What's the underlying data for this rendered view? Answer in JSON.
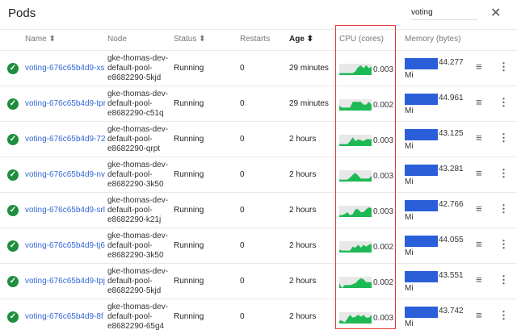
{
  "title": "Pods",
  "search": {
    "value": "voting"
  },
  "colors": {
    "link": "#3367d6",
    "cpu": "#1db954",
    "cpu_bg": "#e8e8e8",
    "memory": "#2b5fd9",
    "ok": "#1e8e3e",
    "highlight": "#e53935"
  },
  "columns": {
    "name": "Name ⬍",
    "node": "Node",
    "status": "Status ⬍",
    "restarts": "Restarts",
    "age": "Age ⬍",
    "cpu": "CPU (cores)",
    "memory": "Memory (bytes)"
  },
  "rows": [
    {
      "name": "voting-676c65b4d9-xs",
      "node": [
        "gke-thomas-dev-",
        "default-pool-",
        "e8682290-5kjd"
      ],
      "status": "Running",
      "restarts": "0",
      "age": "29 minutes",
      "cpu": "0.003",
      "mem": "44.277",
      "unit": "Mi",
      "spark": [
        0.2,
        0.2,
        0.2,
        0.2,
        0.2,
        0.2,
        0.4,
        0.8,
        1,
        0.7,
        1,
        0.7,
        0.9
      ]
    },
    {
      "name": "voting-676c65b4d9-tpr",
      "node": [
        "gke-thomas-dev-",
        "default-pool-",
        "e8682290-c51q"
      ],
      "status": "Running",
      "restarts": "0",
      "age": "29 minutes",
      "cpu": "0.002",
      "mem": "44.961",
      "unit": "Mi",
      "spark": [
        0.5,
        0.3,
        0.3,
        0.3,
        0.3,
        0.9,
        0.9,
        0.9,
        0.9,
        0.6,
        0.6,
        0.9,
        0.6
      ]
    },
    {
      "name": "voting-676c65b4d9-72",
      "node": [
        "gke-thomas-dev-",
        "default-pool-",
        "e8682290-qrpt"
      ],
      "status": "Running",
      "restarts": "0",
      "age": "2 hours",
      "cpu": "0.003",
      "mem": "43.125",
      "unit": "Mi",
      "spark": [
        0.2,
        0.2,
        0.2,
        0.2,
        0.5,
        0.9,
        0.5,
        0.7,
        0.6,
        0.5,
        0.7,
        0.7,
        0.7
      ]
    },
    {
      "name": "voting-676c65b4d9-nv",
      "node": [
        "gke-thomas-dev-",
        "default-pool-",
        "e8682290-3k50"
      ],
      "status": "Running",
      "restarts": "0",
      "age": "2 hours",
      "cpu": "0.003",
      "mem": "43.281",
      "unit": "Mi",
      "spark": [
        0.2,
        0.2,
        0.2,
        0.2,
        0.4,
        0.7,
        0.9,
        0.6,
        0.3,
        0.3,
        0.3,
        0.3,
        0.6
      ]
    },
    {
      "name": "voting-676c65b4d9-srl",
      "node": [
        "gke-thomas-dev-",
        "default-pool-",
        "e8682290-k21j"
      ],
      "status": "Running",
      "restarts": "0",
      "age": "2 hours",
      "cpu": "0.003",
      "mem": "42.766",
      "unit": "Mi",
      "spark": [
        0.2,
        0.2,
        0.3,
        0.5,
        0.2,
        0.3,
        0.8,
        0.8,
        0.5,
        0.5,
        0.8,
        1,
        0.9
      ]
    },
    {
      "name": "voting-676c65b4d9-tj6",
      "node": [
        "gke-thomas-dev-",
        "default-pool-",
        "e8682290-3k50"
      ],
      "status": "Running",
      "restarts": "0",
      "age": "2 hours",
      "cpu": "0.002",
      "mem": "44.055",
      "unit": "Mi",
      "spark": [
        0.3,
        0.2,
        0.2,
        0.2,
        0.2,
        0.6,
        0.5,
        0.8,
        0.5,
        0.8,
        0.6,
        0.8,
        0.9
      ]
    },
    {
      "name": "voting-676c65b4d9-tpj",
      "node": [
        "gke-thomas-dev-",
        "default-pool-",
        "e8682290-5kjd"
      ],
      "status": "Running",
      "restarts": "0",
      "age": "2 hours",
      "cpu": "0.002",
      "mem": "43.551",
      "unit": "Mi",
      "spark": [
        0.5,
        0,
        0.3,
        0.3,
        0.3,
        0.4,
        0.5,
        0.8,
        1,
        0.9,
        0.6,
        0.6,
        0.6
      ]
    },
    {
      "name": "voting-676c65b4d9-8f",
      "node": [
        "gke-thomas-dev-",
        "default-pool-",
        "e8682290-65g4"
      ],
      "status": "Running",
      "restarts": "0",
      "age": "2 hours",
      "cpu": "0.003",
      "mem": "43.742",
      "unit": "Mi",
      "spark": [
        0.3,
        0.3,
        0.1,
        0.5,
        0.9,
        0.6,
        0.7,
        0.9,
        0.7,
        0.9,
        0.6,
        0.6,
        0.9
      ]
    }
  ]
}
